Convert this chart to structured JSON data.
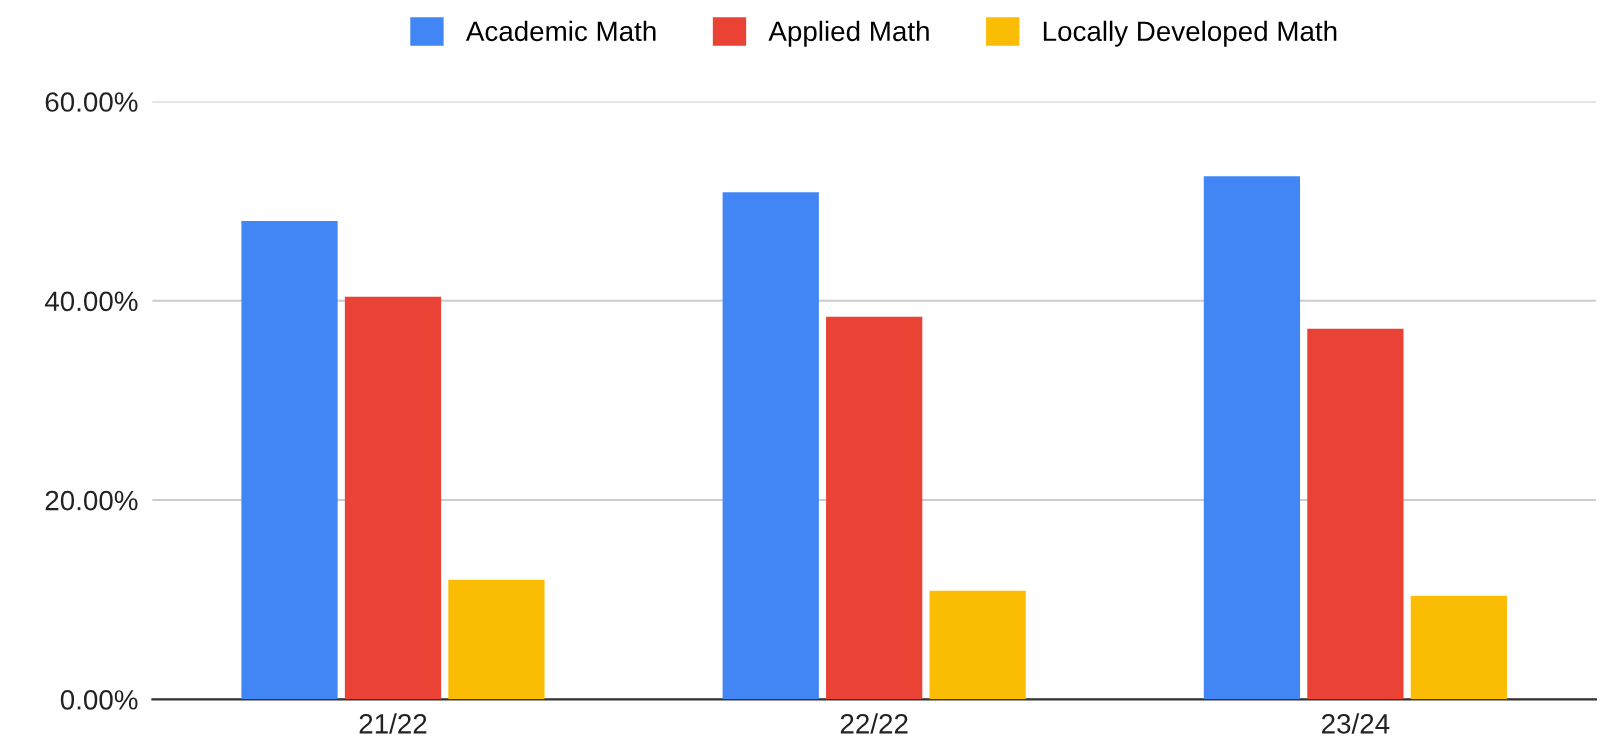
{
  "chart_data": {
    "type": "bar",
    "categories": [
      "21/22",
      "22/22",
      "23/24"
    ],
    "series": [
      {
        "name": "Academic Math",
        "color": "#4285f4",
        "values": [
          48.0,
          50.9,
          52.5
        ]
      },
      {
        "name": "Applied Math",
        "color": "#ea4335",
        "values": [
          40.4,
          38.4,
          37.2
        ]
      },
      {
        "name": "Locally Developed Math",
        "color": "#fbbc04",
        "values": [
          12.0,
          10.9,
          10.4
        ]
      }
    ],
    "ylim": [
      0,
      60
    ],
    "yticks": [
      {
        "value": 0,
        "label": "0.00%"
      },
      {
        "value": 20,
        "label": "20.00%"
      },
      {
        "value": 40,
        "label": "40.00%"
      },
      {
        "value": 60,
        "label": "60.00%"
      }
    ],
    "grid": "y",
    "legend": "top"
  }
}
